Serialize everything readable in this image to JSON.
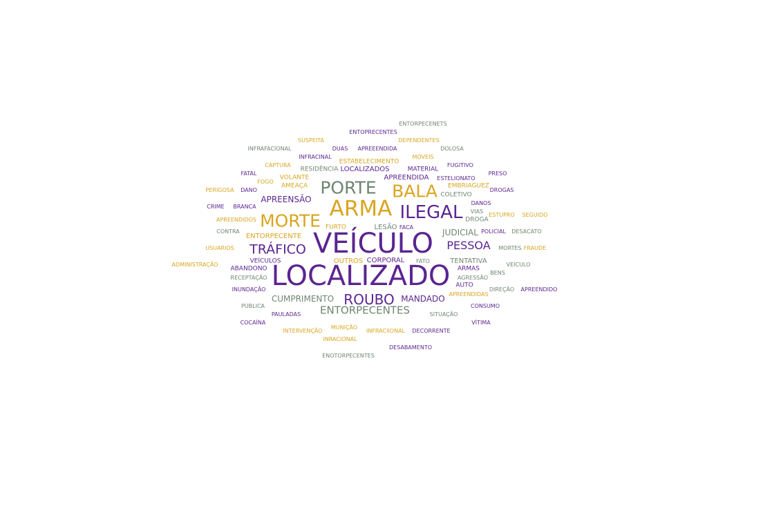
{
  "colors": {
    "purple": "#5b2590",
    "gold": "#d9a520",
    "gray": "#6e8570"
  },
  "words": [
    {
      "text": "ENTORPECENETS",
      "color": "gray"
    },
    {
      "text": "ENTOPRECENTES",
      "color": "purple"
    },
    {
      "text": "SUSPEITA",
      "color": "gold"
    },
    {
      "text": "DEPENDENTES",
      "color": "gold"
    },
    {
      "text": "INFRAFACIONAL",
      "color": "gray"
    },
    {
      "text": "DUAS",
      "color": "purple"
    },
    {
      "text": "APREEENDIDA",
      "color": "purple"
    },
    {
      "text": "DOLOSA",
      "color": "gray"
    },
    {
      "text": "INFRACINAL",
      "color": "purple"
    },
    {
      "text": "MÓVEIS",
      "color": "gold"
    },
    {
      "text": "ESTABELECIMENTO",
      "color": "gold"
    },
    {
      "text": "CAPTURA",
      "color": "gold"
    },
    {
      "text": "FUGITIVO",
      "color": "purple"
    },
    {
      "text": "RESIDÊNCIA",
      "color": "gray"
    },
    {
      "text": "LOCALIZADOS",
      "color": "purple"
    },
    {
      "text": "MATERIAL",
      "color": "purple"
    },
    {
      "text": "FATAL",
      "color": "purple"
    },
    {
      "text": "PRESO",
      "color": "purple"
    },
    {
      "text": "VOLANTE",
      "color": "gold"
    },
    {
      "text": "APREENDIDA",
      "color": "purple"
    },
    {
      "text": "ESTELIONATO",
      "color": "purple"
    },
    {
      "text": "FOGO",
      "color": "gold"
    },
    {
      "text": "AMEAÇA",
      "color": "gold"
    },
    {
      "text": "PORTE",
      "color": "gray"
    },
    {
      "text": "EMBRIAGUEZ",
      "color": "gold"
    },
    {
      "text": "PERIGOSA",
      "color": "gold"
    },
    {
      "text": "DANO",
      "color": "purple"
    },
    {
      "text": "BALA",
      "color": "gold"
    },
    {
      "text": "DROGAS",
      "color": "purple"
    },
    {
      "text": "COLETIVO",
      "color": "gray"
    },
    {
      "text": "APREENSÃO",
      "color": "purple"
    },
    {
      "text": "DANOS",
      "color": "purple"
    },
    {
      "text": "CRIME",
      "color": "purple"
    },
    {
      "text": "BRANCA",
      "color": "purple"
    },
    {
      "text": "ARMA",
      "color": "gold"
    },
    {
      "text": "VIAS",
      "color": "gray"
    },
    {
      "text": "ILEGAL",
      "color": "purple"
    },
    {
      "text": "ESTUPRO",
      "color": "gold"
    },
    {
      "text": "SEGUIDO",
      "color": "gold"
    },
    {
      "text": "APREENDIDOS",
      "color": "gold"
    },
    {
      "text": "MORTE",
      "color": "gold"
    },
    {
      "text": "DROGA",
      "color": "gray"
    },
    {
      "text": "FURTO",
      "color": "gold"
    },
    {
      "text": "LESÃO",
      "color": "gray"
    },
    {
      "text": "FACA",
      "color": "purple"
    },
    {
      "text": "CONTRA",
      "color": "gray"
    },
    {
      "text": "JUDICIAL",
      "color": "gray"
    },
    {
      "text": "POLICIAL",
      "color": "purple"
    },
    {
      "text": "DESACATO",
      "color": "gray"
    },
    {
      "text": "ENTORPECENTE",
      "color": "gold"
    },
    {
      "text": "VEÍCULO",
      "color": "purple"
    },
    {
      "text": "PESSOA",
      "color": "purple"
    },
    {
      "text": "USUARIOS",
      "color": "gold"
    },
    {
      "text": "TRÁFICO",
      "color": "purple"
    },
    {
      "text": "MORTES",
      "color": "gray"
    },
    {
      "text": "FRAUDE",
      "color": "gold"
    },
    {
      "text": "VEÍCULOS",
      "color": "purple"
    },
    {
      "text": "OUTROS",
      "color": "gold"
    },
    {
      "text": "CORPORAL",
      "color": "purple"
    },
    {
      "text": "FATO",
      "color": "gray"
    },
    {
      "text": "TENTATIVA",
      "color": "gray"
    },
    {
      "text": "ADMINISTRAÇÃO",
      "color": "gold"
    },
    {
      "text": "VEICULO",
      "color": "gray"
    },
    {
      "text": "ABANDONO",
      "color": "purple"
    },
    {
      "text": "ARMAS",
      "color": "purple"
    },
    {
      "text": "BENS",
      "color": "gray"
    },
    {
      "text": "LOCALIZADO",
      "color": "purple"
    },
    {
      "text": "RECEPTAÇÃO",
      "color": "gray"
    },
    {
      "text": "AGRESSÃO",
      "color": "gray"
    },
    {
      "text": "AUTO",
      "color": "purple"
    },
    {
      "text": "INUNDAÇÃO",
      "color": "purple"
    },
    {
      "text": "DIREÇÃO",
      "color": "gray"
    },
    {
      "text": "APREENDIDO",
      "color": "purple"
    },
    {
      "text": "APREENDIDAS",
      "color": "gold"
    },
    {
      "text": "CUMPRIMENTO",
      "color": "gray"
    },
    {
      "text": "ROUBO",
      "color": "purple"
    },
    {
      "text": "MANDADO",
      "color": "purple"
    },
    {
      "text": "PÚBLICA",
      "color": "gray"
    },
    {
      "text": "CONSUMO",
      "color": "purple"
    },
    {
      "text": "ENTORPECENTES",
      "color": "gray"
    },
    {
      "text": "PAULADAS",
      "color": "purple"
    },
    {
      "text": "SITUAÇÃO",
      "color": "gray"
    },
    {
      "text": "COCAÍNA",
      "color": "purple"
    },
    {
      "text": "VÍTIMA",
      "color": "purple"
    },
    {
      "text": "MUNIÇÃO",
      "color": "gold"
    },
    {
      "text": "INTERVENÇÃO",
      "color": "gold"
    },
    {
      "text": "INFRACIIONAL",
      "color": "gold"
    },
    {
      "text": "DECORRENTE",
      "color": "purple"
    },
    {
      "text": "INRACIONAL",
      "color": "gold"
    },
    {
      "text": "DESABAMENTO",
      "color": "purple"
    },
    {
      "text": "ENOTORPECENTES",
      "color": "gray"
    }
  ]
}
